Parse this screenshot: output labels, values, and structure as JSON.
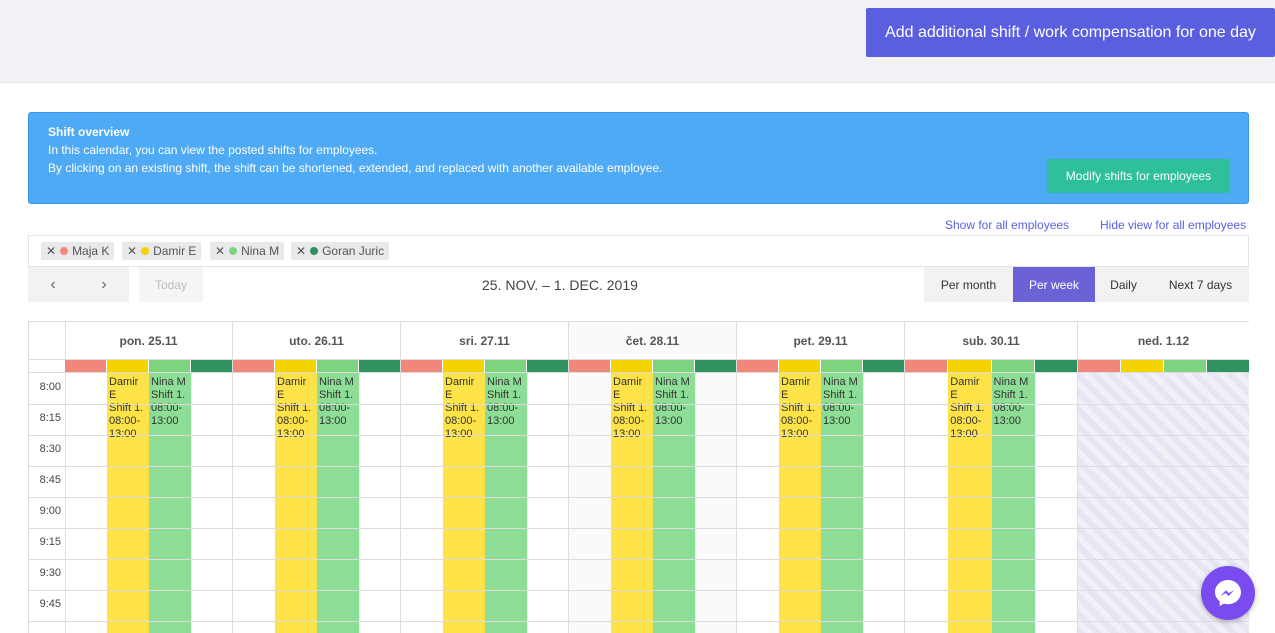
{
  "header": {
    "add_button": "Add additional shift / work compensation for one day"
  },
  "info": {
    "title": "Shift overview",
    "line1": "In this calendar, you can view the posted shifts for employees.",
    "line2": "By clicking on an existing shift, the shift can be shortened, extended, and replaced with another available employee.",
    "modify_button": "Modify shifts for employees"
  },
  "links": {
    "show_all": "Show for all employees",
    "hide_all": "Hide view for all employees"
  },
  "chips": [
    {
      "name": "Maja K",
      "color": "#f0877a"
    },
    {
      "name": "Damir E",
      "color": "#f5d300"
    },
    {
      "name": "Nina M",
      "color": "#7ed37f"
    },
    {
      "name": "Goran Juric",
      "color": "#2e9360"
    }
  ],
  "toolbar": {
    "prev_icon": "‹",
    "next_icon": "›",
    "today": "Today",
    "range": "25. NOV. – 1. DEC. 2019",
    "views": [
      "Per month",
      "Per week",
      "Daily",
      "Next 7 days"
    ],
    "active_view": "Per week"
  },
  "calendar": {
    "days": [
      "pon. 25.11",
      "uto. 26.11",
      "sri. 27.11",
      "čet. 28.11",
      "pet. 29.11",
      "sub. 30.11",
      "ned. 1.12"
    ],
    "times": [
      "8:00",
      "8:15",
      "8:30",
      "8:45",
      "9:00",
      "9:15",
      "9:30",
      "9:45"
    ],
    "lane_colors": [
      "#f0877a",
      "#f5d300",
      "#7ed37f",
      "#2e9360"
    ],
    "shift_damir": [
      "Damir",
      "E",
      "Shift 1.",
      "08:00-",
      "13:00"
    ],
    "shift_nina": [
      "Nina M",
      "Shift 1.",
      "08:00-",
      "13:00"
    ]
  }
}
